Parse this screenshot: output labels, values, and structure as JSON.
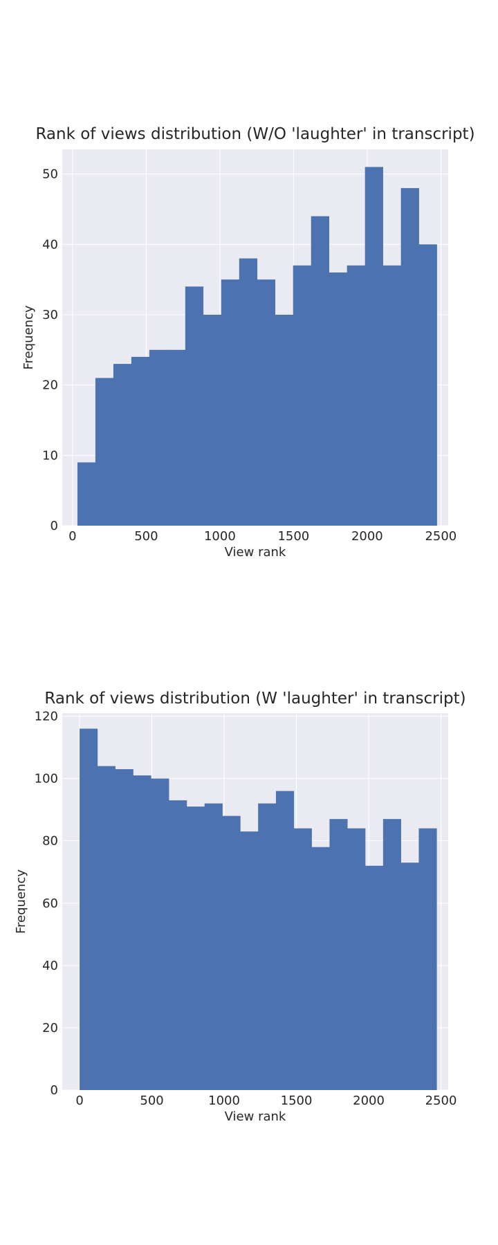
{
  "chart_data": [
    {
      "type": "bar",
      "title": "Rank of views distribution (W/O 'laughter' in transcript)",
      "xlabel": "View rank",
      "ylabel": "Frequency",
      "xlim": [
        -70,
        2550
      ],
      "ylim": [
        0,
        53.5
      ],
      "xticks": [
        0,
        500,
        1000,
        1500,
        2000,
        2500
      ],
      "yticks": [
        0,
        10,
        20,
        30,
        40,
        50
      ],
      "bin_start": 33,
      "bin_width": 122,
      "values": [
        9,
        21,
        23,
        24,
        25,
        25,
        34,
        30,
        35,
        38,
        35,
        30,
        37,
        44,
        36,
        37,
        51,
        37,
        48,
        40
      ],
      "grid": true,
      "bar_color": "#4c72b0",
      "background": "#eaeaf2"
    },
    {
      "type": "bar",
      "title": "Rank of views distribution (W 'laughter' in transcript)",
      "xlabel": "View rank",
      "ylabel": "Frequency",
      "xlim": [
        -120,
        2550
      ],
      "ylim": [
        0,
        121
      ],
      "xticks": [
        0,
        500,
        1000,
        1500,
        2000,
        2500
      ],
      "yticks": [
        0,
        20,
        40,
        60,
        80,
        100,
        120
      ],
      "bin_start": 0,
      "bin_width": 123.5,
      "values": [
        116,
        104,
        103,
        101,
        100,
        93,
        91,
        92,
        88,
        83,
        92,
        96,
        84,
        78,
        87,
        84,
        72,
        87,
        73,
        84
      ],
      "grid": true,
      "bar_color": "#4c72b0",
      "background": "#eaeaf2"
    }
  ]
}
